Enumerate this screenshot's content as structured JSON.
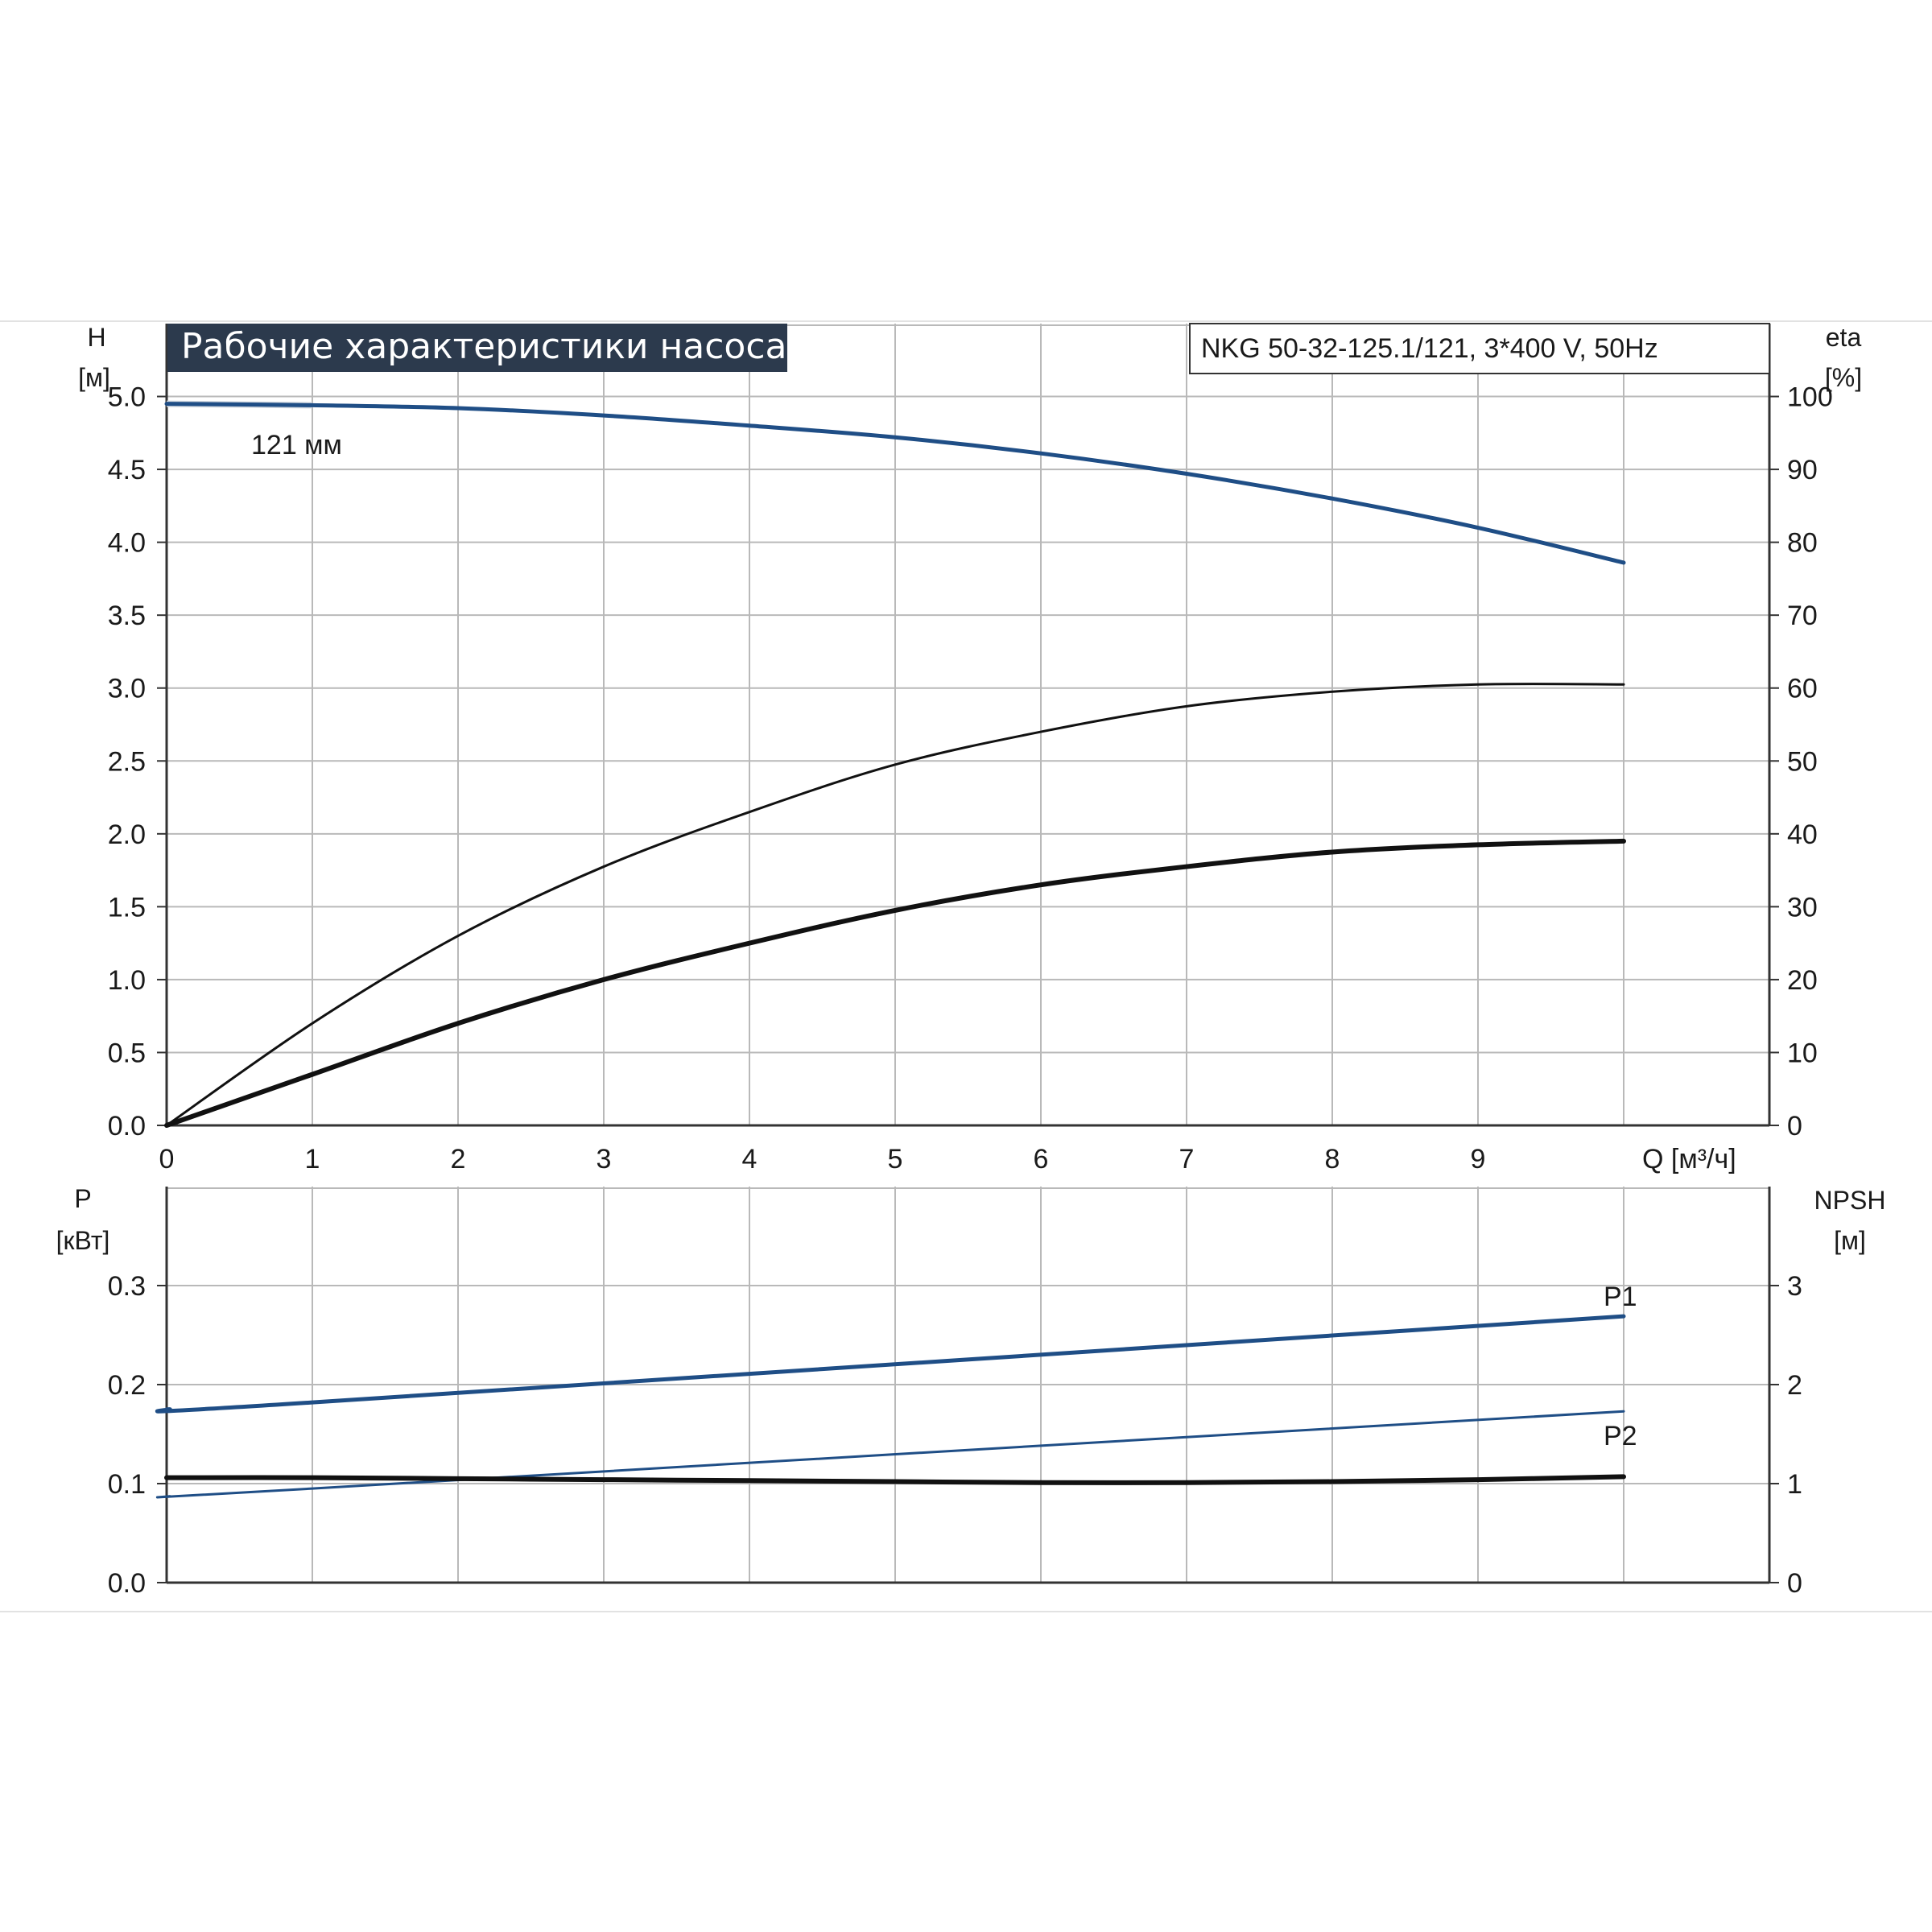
{
  "colors": {
    "blue": "#1f4e86",
    "black": "#111111",
    "grid": "#b9b9b9",
    "title_bg": "#2c3a4d",
    "title_fg": "#ffffff",
    "band_shadow": "#cfd6de"
  },
  "chart_data": [
    {
      "type": "line",
      "title": "Рабочие характеристики насоса",
      "model_label": "NKG 50-32-125.1/121, 3*400 V, 50Hz",
      "left_axis": {
        "label_line1": "H",
        "label_line2": "[м]",
        "ylim": [
          0,
          5.5
        ],
        "ticks": [
          "0.0",
          "0.5",
          "1.0",
          "1.5",
          "2.0",
          "2.5",
          "3.0",
          "3.5",
          "4.0",
          "4.5",
          "5.0"
        ],
        "tick_values": [
          0,
          0.5,
          1,
          1.5,
          2,
          2.5,
          3,
          3.5,
          4,
          4.5,
          5
        ]
      },
      "right_axis": {
        "label_line1": "eta",
        "label_line2": "[%]",
        "ylim": [
          0,
          110
        ],
        "ticks": [
          "0",
          "10",
          "20",
          "30",
          "40",
          "50",
          "60",
          "70",
          "80",
          "90",
          "100"
        ],
        "tick_values": [
          0,
          10,
          20,
          30,
          40,
          50,
          60,
          70,
          80,
          90,
          100
        ]
      },
      "x_axis": {
        "label": "Q [м³/ч]",
        "xlim": [
          0,
          11
        ],
        "ticks": [
          "0",
          "1",
          "2",
          "3",
          "4",
          "5",
          "6",
          "7",
          "8",
          "9"
        ],
        "tick_values": [
          0,
          1,
          2,
          3,
          4,
          5,
          6,
          7,
          8,
          9
        ]
      },
      "annotations": [
        {
          "text": "121 мм",
          "x": 0.95,
          "y": 5.05
        }
      ],
      "series": [
        {
          "axis": "left",
          "color": "blue",
          "width": 5,
          "style": "head",
          "x": [
            0,
            1,
            2,
            3,
            4,
            5,
            6,
            7,
            8,
            9,
            10
          ],
          "y": [
            4.95,
            4.94,
            4.92,
            4.87,
            4.8,
            4.72,
            4.61,
            4.47,
            4.3,
            4.1,
            3.86
          ]
        },
        {
          "axis": "right",
          "color": "black",
          "width": 3,
          "style": "eta",
          "x": [
            0,
            1,
            2,
            3,
            4,
            5,
            6,
            7,
            8,
            9,
            10
          ],
          "y": [
            0,
            14,
            26,
            35.5,
            43,
            49.5,
            54,
            57.5,
            59.5,
            60.5,
            60.5
          ]
        },
        {
          "axis": "right",
          "color": "black",
          "width": 6,
          "style": "eta",
          "x": [
            0,
            1,
            2,
            3,
            4,
            5,
            6,
            7,
            8,
            9,
            10
          ],
          "y": [
            0,
            7,
            14,
            20,
            25,
            29.5,
            33,
            35.5,
            37.5,
            38.5,
            39
          ]
        }
      ]
    },
    {
      "type": "line",
      "left_axis": {
        "label_line1": "P",
        "label_line2": "[кВт]",
        "ylim": [
          0,
          0.4
        ],
        "ticks": [
          "0.0",
          "0.1",
          "0.2",
          "0.3"
        ],
        "tick_values": [
          0,
          0.1,
          0.2,
          0.3
        ]
      },
      "right_axis": {
        "label_line1": "NPSH",
        "label_line2": "[м]",
        "ylim": [
          0,
          4
        ],
        "ticks": [
          "0",
          "1",
          "2",
          "3"
        ],
        "tick_values": [
          0,
          1,
          2,
          3
        ]
      },
      "x_axis": {
        "xlim": [
          0,
          11
        ],
        "tick_values": [
          0,
          1,
          2,
          3,
          4,
          5,
          6,
          7,
          8,
          9
        ]
      },
      "series": [
        {
          "name": "P1",
          "axis": "left",
          "color": "blue",
          "width": 5,
          "x": [
            0,
            1,
            10
          ],
          "y": [
            0.175,
            0.182,
            0.269
          ]
        },
        {
          "name": "P2",
          "axis": "left",
          "color": "blue",
          "width": 3,
          "x": [
            0,
            1,
            10
          ],
          "y": [
            0.087,
            0.095,
            0.173
          ]
        },
        {
          "name": "",
          "axis": "right",
          "color": "black",
          "width": 6,
          "x": [
            0,
            1,
            2,
            3,
            4,
            5,
            6,
            7,
            8,
            9,
            10
          ],
          "y": [
            1.06,
            1.06,
            1.05,
            1.04,
            1.03,
            1.02,
            1.01,
            1.01,
            1.02,
            1.04,
            1.07
          ]
        }
      ]
    }
  ]
}
